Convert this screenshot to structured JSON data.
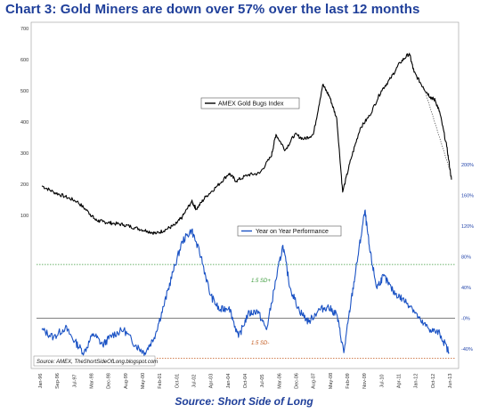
{
  "title": "Chart 3: Gold Miners are down over 57% over the last 12 months",
  "source": "Source: Short Side of Long",
  "chart_data": {
    "type": "line",
    "x_tick_labels": [
      "Jan-96",
      "Sep-96",
      "Jul-97",
      "Mar-98",
      "Dec-98",
      "Aug-99",
      "May-00",
      "Feb-01",
      "Oct-01",
      "Jul-02",
      "Apr-03",
      "Jan-04",
      "Oct-04",
      "Jul-05",
      "Mar-06",
      "Dec-06",
      "Aug-07",
      "May-08",
      "Feb-09",
      "Nov-09",
      "Jul-10",
      "Apr-11",
      "Jan-12",
      "Oct-12",
      "Jun-13"
    ],
    "left_axis": {
      "ticks": [
        100,
        200,
        300,
        400,
        500,
        600,
        700
      ],
      "ylim": [
        0,
        700
      ]
    },
    "right_axis": {
      "tick_labels": [
        "-40%",
        "-0%",
        "40%",
        "80%",
        "120%",
        "160%",
        "200%"
      ],
      "ticks": [
        -40,
        0,
        40,
        80,
        120,
        160,
        200
      ],
      "ylim": [
        -60,
        220
      ]
    },
    "series": [
      {
        "name": "AMEX Gold Bugs Index",
        "axis": "left",
        "color": "#000000",
        "x": [
          1996.0,
          1996.5,
          1997.0,
          1997.5,
          1998.0,
          1998.3,
          1998.6,
          1999.0,
          1999.5,
          2000.0,
          2000.5,
          2000.9,
          2001.3,
          2001.7,
          2002.0,
          2002.4,
          2002.6,
          2003.0,
          2003.5,
          2004.0,
          2004.3,
          2004.8,
          2005.3,
          2005.8,
          2006.0,
          2006.4,
          2006.8,
          2007.2,
          2007.6,
          2008.0,
          2008.3,
          2008.6,
          2008.85,
          2009.2,
          2009.6,
          2010.0,
          2010.5,
          2010.9,
          2011.3,
          2011.7,
          2011.9,
          2012.3,
          2012.6,
          2012.8,
          2013.0,
          2013.3,
          2013.5
        ],
        "y": [
          195,
          175,
          160,
          145,
          110,
          85,
          80,
          75,
          70,
          60,
          50,
          42,
          55,
          70,
          95,
          145,
          120,
          160,
          195,
          235,
          210,
          230,
          235,
          290,
          360,
          310,
          360,
          345,
          360,
          520,
          480,
          410,
          175,
          280,
          380,
          420,
          500,
          540,
          590,
          620,
          560,
          510,
          480,
          470,
          430,
          320,
          215
        ]
      },
      {
        "name": "Year on Year Performance",
        "axis": "right",
        "color": "#1a52c4",
        "x": [
          1996.0,
          1996.5,
          1997.0,
          1997.4,
          1997.8,
          1998.2,
          1998.6,
          1999.0,
          1999.5,
          2000.0,
          2000.4,
          2000.8,
          2001.2,
          2001.6,
          2002.0,
          2002.4,
          2002.8,
          2003.2,
          2003.6,
          2004.0,
          2004.4,
          2004.8,
          2005.2,
          2005.6,
          2006.0,
          2006.3,
          2006.6,
          2007.0,
          2007.4,
          2007.8,
          2008.2,
          2008.6,
          2008.9,
          2009.2,
          2009.5,
          2009.8,
          2010.0,
          2010.3,
          2010.6,
          2011.0,
          2011.4,
          2011.8,
          2012.2,
          2012.6,
          2013.0,
          2013.4
        ],
        "y": [
          -15,
          -25,
          -12,
          -30,
          -45,
          -20,
          -35,
          -22,
          -15,
          -35,
          -45,
          -25,
          15,
          60,
          100,
          115,
          80,
          30,
          10,
          15,
          -25,
          5,
          10,
          -15,
          50,
          95,
          40,
          10,
          -5,
          10,
          15,
          5,
          -45,
          20,
          80,
          140,
          90,
          40,
          55,
          35,
          25,
          15,
          -5,
          -15,
          -20,
          -45
        ]
      }
    ],
    "reference_lines": [
      {
        "label": "1.5 SD+",
        "value": 70,
        "color": "#3a9a3a"
      },
      {
        "label": "",
        "value": 0,
        "color": "#555555"
      },
      {
        "label": "1.5 SD-",
        "value": -52,
        "color": "#c2571a"
      }
    ],
    "annotation": "Source: AMEX, TheShortSideOfLong.blogspot.com",
    "legend_placement": "inside-center"
  }
}
